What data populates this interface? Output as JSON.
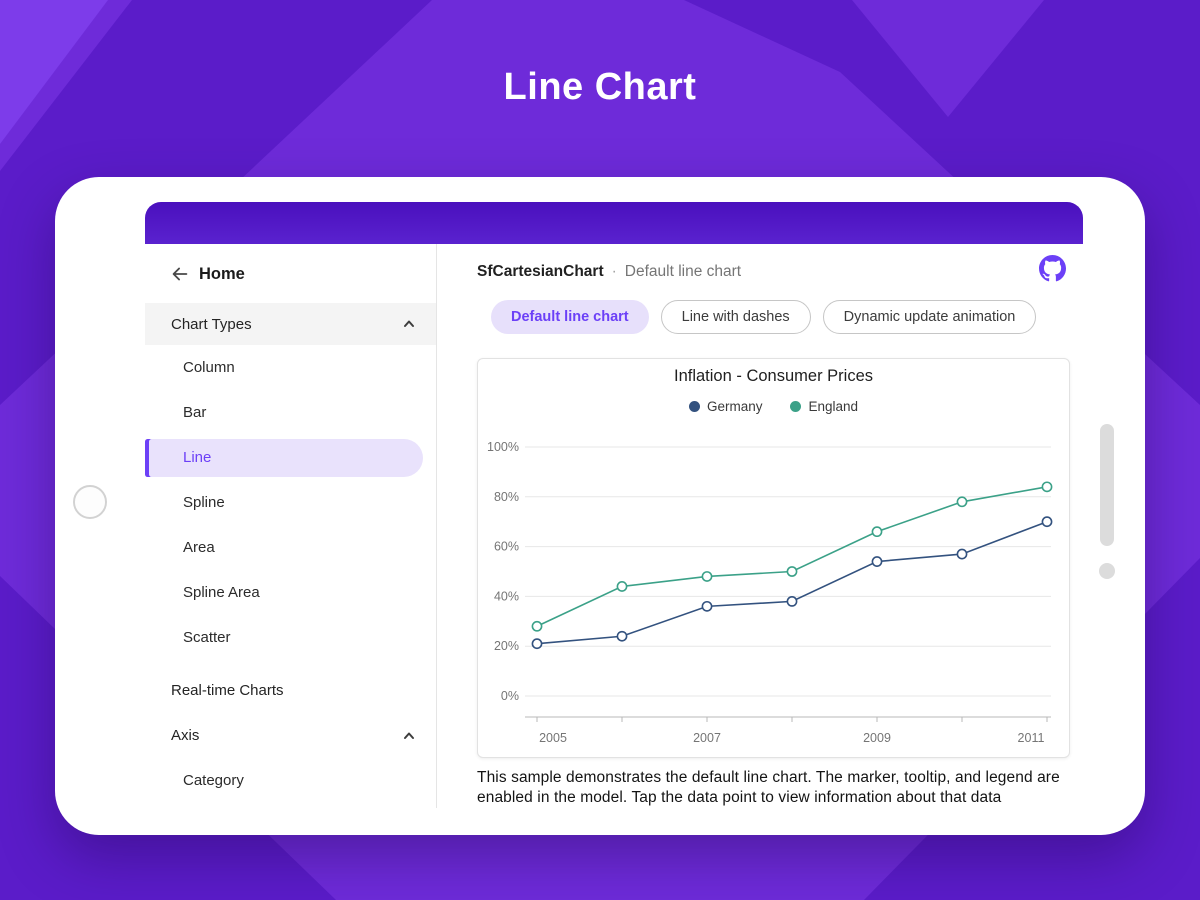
{
  "page": {
    "title": "Line Chart"
  },
  "sidebar": {
    "home": "Home",
    "chart_types_header": "Chart Types",
    "items": [
      {
        "label": "Column"
      },
      {
        "label": "Bar"
      },
      {
        "label": "Line",
        "selected": true
      },
      {
        "label": "Spline"
      },
      {
        "label": "Area"
      },
      {
        "label": "Spline Area"
      },
      {
        "label": "Scatter"
      }
    ],
    "realtime_header": "Real-time Charts",
    "axis_header": "Axis",
    "axis_items": [
      {
        "label": "Category"
      }
    ]
  },
  "main": {
    "breadcrumb": {
      "title": "SfCartesianChart",
      "separator": "·",
      "subtitle": "Default line chart"
    },
    "chips": [
      {
        "label": "Default line chart",
        "selected": true
      },
      {
        "label": "Line with dashes",
        "selected": false
      },
      {
        "label": "Dynamic update animation",
        "selected": false
      }
    ],
    "description": "This sample demonstrates the default line chart. The marker, tooltip, and legend are enabled in the model. Tap the data point to view information about that data"
  },
  "chart_data": {
    "type": "line",
    "title": "Inflation - Consumer Prices",
    "x": [
      2005,
      2006,
      2007,
      2008,
      2009,
      2010,
      2011
    ],
    "series": [
      {
        "name": "Germany",
        "color": "#33527f",
        "values": [
          21,
          24,
          36,
          38,
          54,
          57,
          70
        ]
      },
      {
        "name": "England",
        "color": "#3ba188",
        "values": [
          28,
          44,
          48,
          50,
          66,
          78,
          84
        ]
      }
    ],
    "ylim": [
      0,
      100
    ],
    "y_tick_interval": 20,
    "y_tick_suffix": "%",
    "x_tick_labels": [
      "2005",
      "2007",
      "2009",
      "2011"
    ],
    "grid": "horizontal",
    "legend_position": "top",
    "marker": "circle"
  },
  "colors": {
    "accent": "#6c40f7",
    "appbar": "#5318c8",
    "background": "#6e2bd9",
    "background_dark": "#5b1cc9",
    "selected_pill_bg": "#e9e2fc"
  }
}
